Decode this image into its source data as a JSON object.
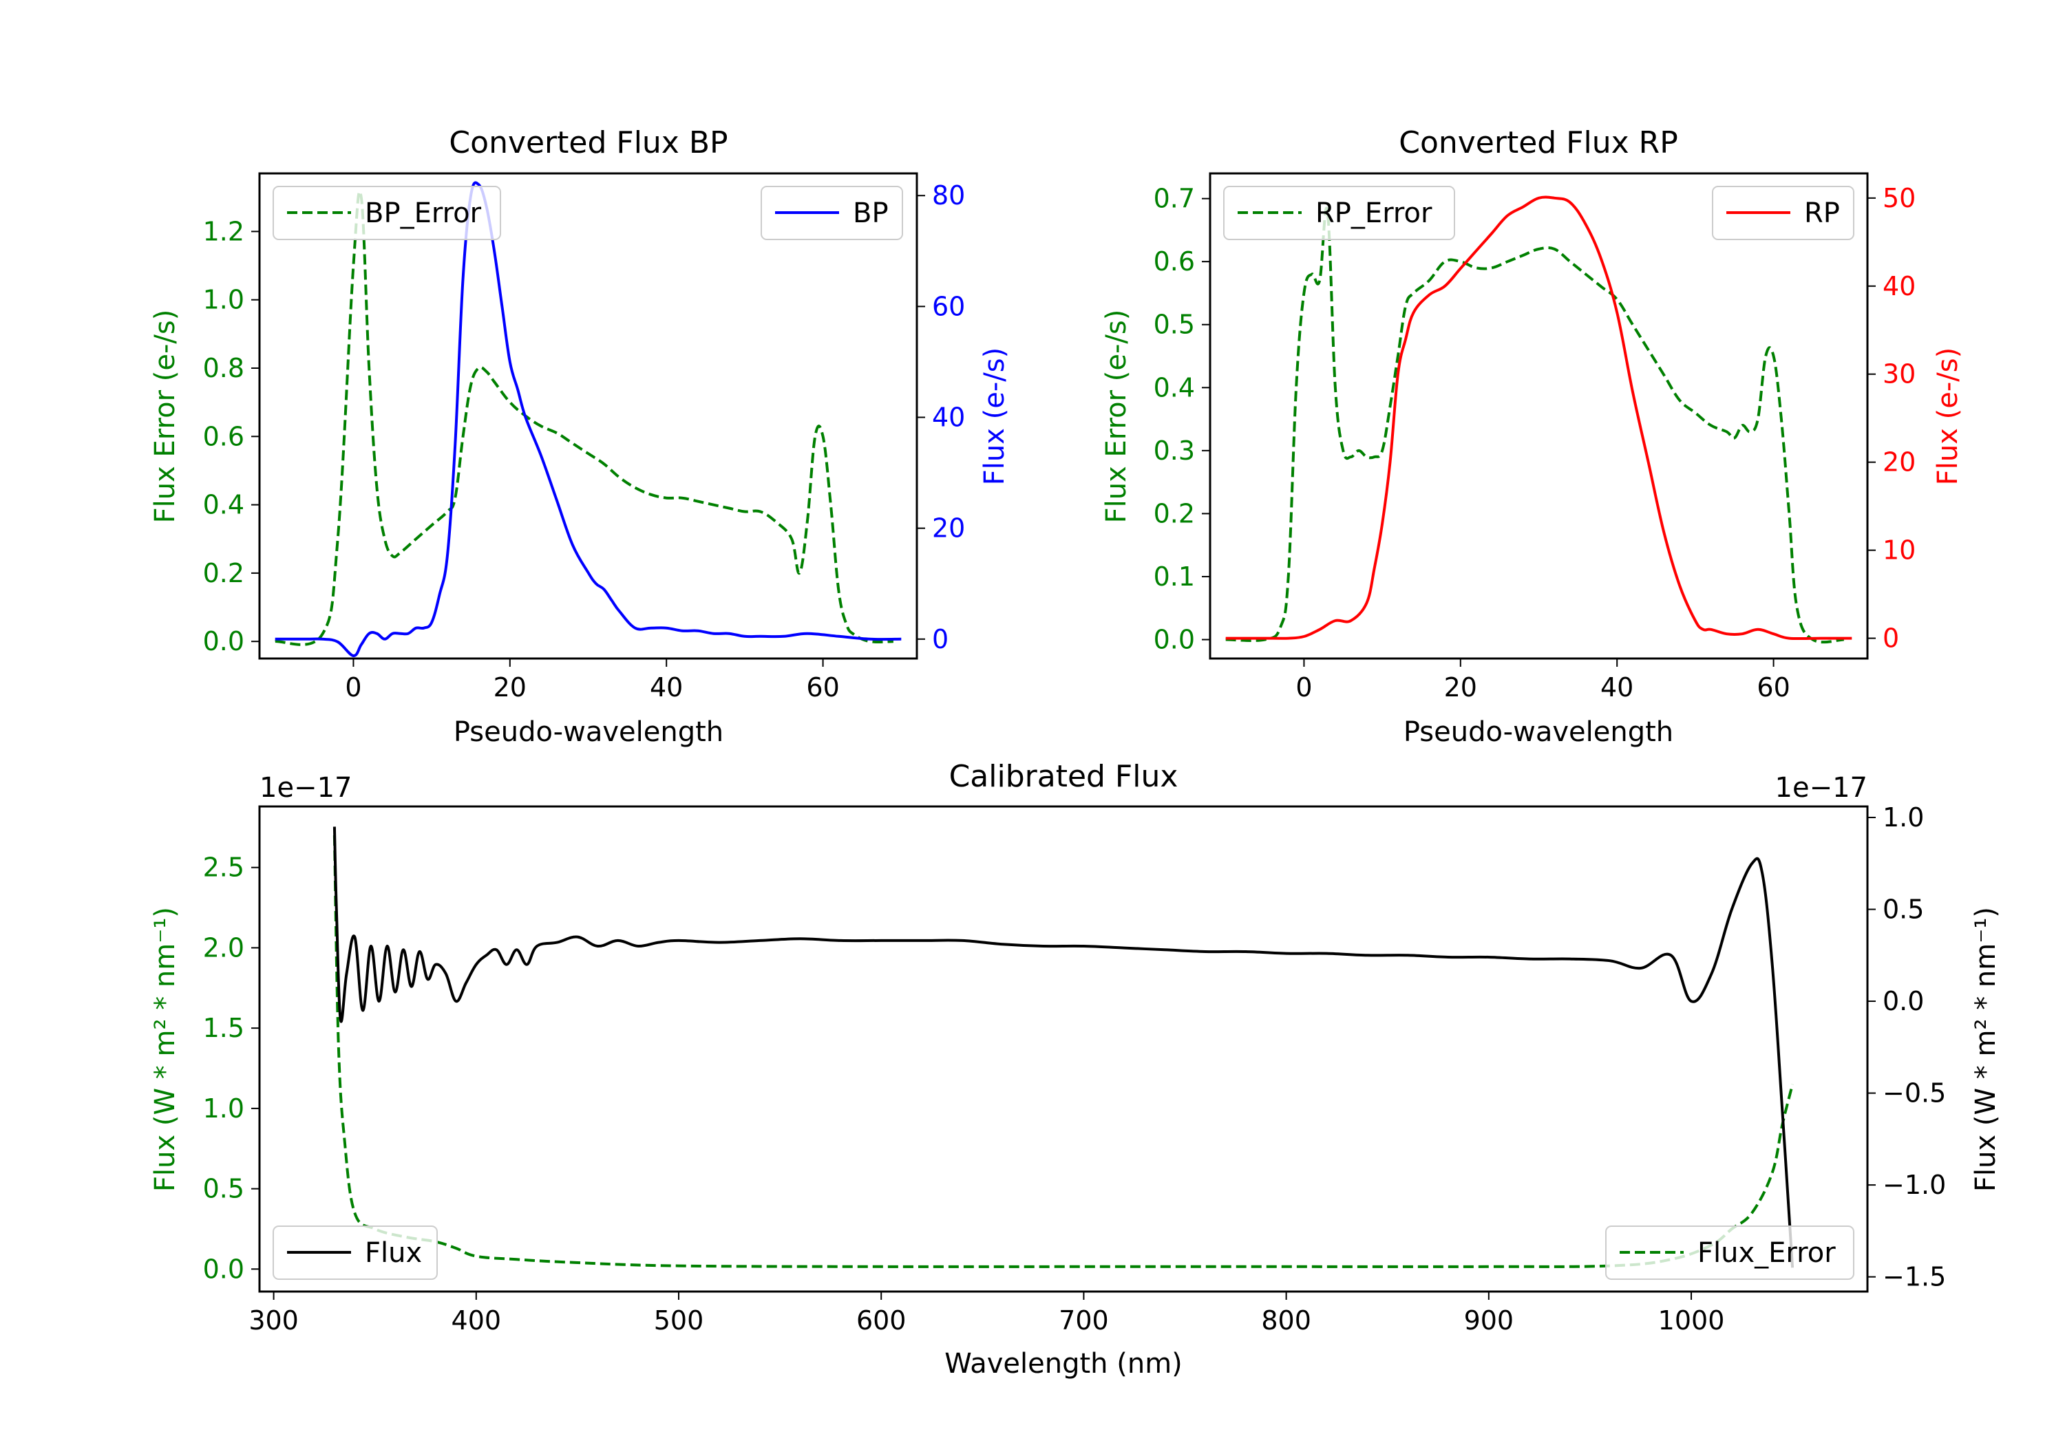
{
  "chart_data": [
    {
      "id": "bp",
      "type": "line",
      "title": "Converted Flux BP",
      "xlabel": "Pseudo-wavelength",
      "xlim": [
        -12,
        72
      ],
      "xticks": [
        0,
        20,
        40,
        60
      ],
      "left_axis": {
        "label": "Flux Error (e-/s)",
        "color": "#008000",
        "lim": [
          -0.05,
          1.37
        ],
        "ticks": [
          "0.0",
          "0.2",
          "0.4",
          "0.6",
          "0.8",
          "1.0",
          "1.2"
        ]
      },
      "right_axis": {
        "label": "Flux (e-/s)",
        "color": "#0000ff",
        "lim": [
          -3.5,
          84
        ],
        "ticks": [
          "0",
          "20",
          "40",
          "60",
          "80"
        ]
      },
      "series": [
        {
          "name": "BP_Error",
          "axis": "left",
          "style": "dashed",
          "color": "#008000",
          "x": [
            -10,
            -4,
            -2,
            0,
            1,
            2,
            3,
            4,
            5,
            6,
            8,
            10,
            12,
            13,
            14,
            15,
            16,
            17,
            18,
            20,
            22,
            24,
            26,
            28,
            30,
            32,
            34,
            36,
            38,
            40,
            42,
            44,
            46,
            48,
            50,
            52,
            54,
            56,
            57,
            58,
            59,
            60,
            61,
            62,
            63,
            64,
            66,
            69
          ],
          "y": [
            0.0,
            0.02,
            0.3,
            1.1,
            1.3,
            0.8,
            0.45,
            0.3,
            0.25,
            0.26,
            0.3,
            0.34,
            0.38,
            0.42,
            0.6,
            0.75,
            0.8,
            0.79,
            0.76,
            0.7,
            0.66,
            0.63,
            0.61,
            0.58,
            0.55,
            0.52,
            0.48,
            0.45,
            0.43,
            0.42,
            0.42,
            0.41,
            0.4,
            0.39,
            0.38,
            0.38,
            0.35,
            0.3,
            0.2,
            0.35,
            0.6,
            0.6,
            0.4,
            0.15,
            0.05,
            0.02,
            0.0,
            0.0
          ]
        },
        {
          "name": "BP",
          "axis": "right",
          "style": "solid",
          "color": "#0000ff",
          "x": [
            -10,
            -6,
            -4,
            -2,
            0,
            1,
            2,
            3,
            4,
            5,
            6,
            7,
            8,
            9,
            10,
            11,
            12,
            13,
            14,
            15,
            16,
            17,
            18,
            19,
            20,
            21,
            22,
            24,
            26,
            28,
            30,
            31,
            32,
            33,
            34,
            36,
            38,
            40,
            42,
            44,
            46,
            48,
            50,
            52,
            55,
            58,
            62,
            66,
            70
          ],
          "y": [
            0,
            0,
            0,
            -0.5,
            -3,
            -1,
            1,
            1,
            0,
            1,
            1,
            1,
            2,
            2,
            3,
            8,
            15,
            35,
            65,
            80,
            82,
            78,
            70,
            60,
            50,
            45,
            40,
            33,
            25,
            17,
            12,
            10,
            9,
            7,
            5,
            2,
            2,
            2,
            1.5,
            1.5,
            1,
            1,
            0.5,
            0.5,
            0.5,
            1,
            0.5,
            0,
            0
          ]
        }
      ],
      "legends": [
        {
          "series": "BP_Error",
          "label": "BP_Error",
          "loc": "upper left"
        },
        {
          "series": "BP",
          "label": "BP",
          "loc": "upper right"
        }
      ]
    },
    {
      "id": "rp",
      "type": "line",
      "title": "Converted Flux RP",
      "xlabel": "Pseudo-wavelength",
      "xlim": [
        -12,
        72
      ],
      "xticks": [
        0,
        20,
        40,
        60
      ],
      "left_axis": {
        "label": "Flux Error (e-/s)",
        "color": "#008000",
        "lim": [
          -0.03,
          0.74
        ],
        "ticks": [
          "0.0",
          "0.1",
          "0.2",
          "0.3",
          "0.4",
          "0.5",
          "0.6",
          "0.7"
        ]
      },
      "right_axis": {
        "label": "Flux (e-/s)",
        "color": "#ff0000",
        "lim": [
          -2.3,
          52.8
        ],
        "ticks": [
          "0",
          "10",
          "20",
          "30",
          "40",
          "50"
        ]
      },
      "series": [
        {
          "name": "RP_Error",
          "axis": "left",
          "style": "dashed",
          "color": "#008000",
          "x": [
            -10,
            -5,
            -3,
            -2,
            -1,
            0,
            1,
            2,
            3,
            4,
            5,
            6,
            7,
            8,
            9,
            10,
            11,
            12,
            13,
            14,
            16,
            18,
            20,
            22,
            24,
            26,
            28,
            30,
            32,
            34,
            36,
            38,
            40,
            42,
            44,
            46,
            48,
            50,
            52,
            54,
            55,
            56,
            57,
            58,
            59,
            60,
            61,
            62,
            63,
            65,
            69
          ],
          "y": [
            0.0,
            0.0,
            0.02,
            0.1,
            0.4,
            0.55,
            0.58,
            0.57,
            0.68,
            0.4,
            0.3,
            0.29,
            0.3,
            0.29,
            0.29,
            0.3,
            0.37,
            0.45,
            0.53,
            0.55,
            0.57,
            0.6,
            0.6,
            0.59,
            0.59,
            0.6,
            0.61,
            0.62,
            0.62,
            0.6,
            0.58,
            0.56,
            0.54,
            0.5,
            0.46,
            0.42,
            0.38,
            0.36,
            0.34,
            0.33,
            0.32,
            0.34,
            0.33,
            0.35,
            0.45,
            0.45,
            0.35,
            0.2,
            0.05,
            0.0,
            0.0
          ]
        },
        {
          "name": "RP",
          "axis": "right",
          "style": "solid",
          "color": "#ff0000",
          "x": [
            -10,
            -4,
            -2,
            0,
            2,
            4,
            6,
            8,
            9,
            10,
            11,
            12,
            13,
            14,
            16,
            18,
            20,
            22,
            24,
            26,
            28,
            30,
            32,
            34,
            36,
            38,
            40,
            42,
            44,
            46,
            48,
            50,
            51,
            52,
            54,
            56,
            58,
            60,
            62,
            66,
            70
          ],
          "y": [
            0,
            0,
            0,
            0.2,
            1,
            2,
            2,
            4,
            8,
            13,
            20,
            30,
            34,
            37,
            39,
            40,
            42,
            44,
            46,
            48,
            49,
            50,
            50,
            49.5,
            47,
            43,
            37,
            28,
            20,
            12,
            6,
            2,
            1,
            1,
            0.5,
            0.5,
            1,
            0.5,
            0,
            0,
            0
          ]
        }
      ],
      "legends": [
        {
          "series": "RP_Error",
          "label": "RP_Error",
          "loc": "upper left"
        },
        {
          "series": "RP",
          "label": "RP",
          "loc": "upper right"
        }
      ]
    },
    {
      "id": "cal",
      "type": "line",
      "title": "Calibrated Flux",
      "xlabel": "Wavelength (nm)",
      "xlim": [
        293,
        1087
      ],
      "xticks": [
        300,
        400,
        500,
        600,
        700,
        800,
        900,
        1000
      ],
      "left_axis": {
        "label": "Flux (W * m² * nm⁻¹)",
        "color": "#008000",
        "offset": "1e−17",
        "lim": [
          -0.14,
          2.88
        ],
        "ticks": [
          "0.0",
          "0.5",
          "1.0",
          "1.5",
          "2.0",
          "2.5"
        ],
        "tick_values": [
          0,
          0.5,
          1,
          1.5,
          2,
          2.5
        ]
      },
      "right_axis": {
        "label": "Flux (W * m² * nm⁻¹)",
        "color": "#000000",
        "offset": "1e−17",
        "lim": [
          -1.58,
          1.06
        ],
        "ticks": [
          "−1.5",
          "−1.0",
          "−0.5",
          "0.0",
          "0.5",
          "1.0"
        ],
        "tick_values": [
          -1.5,
          -1,
          -0.5,
          0,
          0.5,
          1
        ]
      },
      "series": [
        {
          "name": "Flux_Error",
          "axis": "left",
          "style": "dashed",
          "color": "#008000",
          "x": [
            330,
            332,
            335,
            340,
            350,
            365,
            380,
            390,
            400,
            420,
            450,
            500,
            600,
            700,
            800,
            900,
            960,
            990,
            1010,
            1020,
            1030,
            1040,
            1045,
            1050
          ],
          "y": [
            2.7,
            1.4,
            0.8,
            0.35,
            0.25,
            0.2,
            0.17,
            0.13,
            0.08,
            0.06,
            0.04,
            0.02,
            0.015,
            0.015,
            0.015,
            0.015,
            0.02,
            0.06,
            0.15,
            0.25,
            0.35,
            0.6,
            0.9,
            1.15
          ]
        },
        {
          "name": "Flux",
          "axis": "right",
          "style": "solid",
          "color": "#000000",
          "x": [
            330,
            331,
            333,
            336,
            340,
            344,
            348,
            352,
            356,
            360,
            364,
            368,
            372,
            376,
            380,
            385,
            390,
            395,
            400,
            405,
            410,
            415,
            420,
            425,
            430,
            440,
            450,
            460,
            470,
            480,
            490,
            500,
            520,
            540,
            560,
            580,
            600,
            620,
            640,
            660,
            680,
            700,
            720,
            740,
            760,
            780,
            800,
            820,
            840,
            860,
            880,
            900,
            920,
            940,
            960,
            975,
            990,
            1000,
            1010,
            1020,
            1030,
            1035,
            1040,
            1045,
            1050
          ],
          "y": [
            0.95,
            0.5,
            -0.1,
            0.15,
            0.35,
            -0.05,
            0.3,
            0.0,
            0.3,
            0.05,
            0.28,
            0.08,
            0.27,
            0.12,
            0.2,
            0.15,
            0.0,
            0.1,
            0.2,
            0.25,
            0.28,
            0.2,
            0.28,
            0.2,
            0.3,
            0.32,
            0.35,
            0.3,
            0.33,
            0.3,
            0.32,
            0.33,
            0.32,
            0.33,
            0.34,
            0.33,
            0.33,
            0.33,
            0.33,
            0.31,
            0.3,
            0.3,
            0.29,
            0.28,
            0.27,
            0.27,
            0.26,
            0.26,
            0.25,
            0.25,
            0.24,
            0.24,
            0.23,
            0.23,
            0.22,
            0.18,
            0.25,
            0.0,
            0.15,
            0.5,
            0.75,
            0.7,
            0.2,
            -0.6,
            -1.45
          ]
        }
      ],
      "legends": [
        {
          "series": "Flux",
          "label": "Flux",
          "loc": "lower left"
        },
        {
          "series": "Flux_Error",
          "label": "Flux_Error",
          "loc": "lower right"
        }
      ]
    }
  ]
}
